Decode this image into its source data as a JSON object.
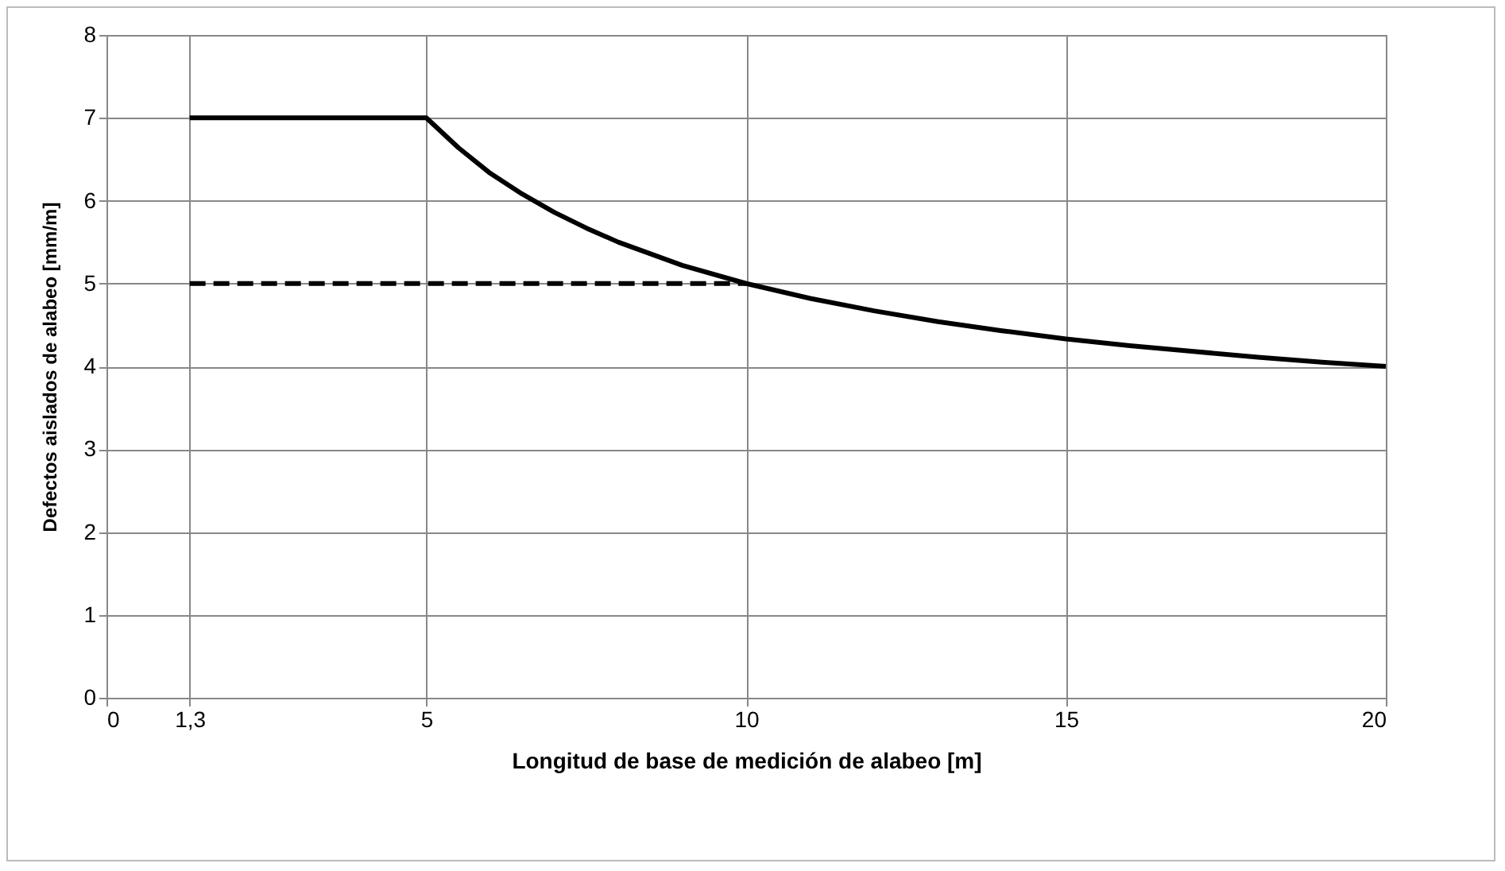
{
  "chart_data": {
    "type": "line",
    "xlabel": "Longitud de base de medición de alabeo [m]",
    "ylabel": "Defectos  aislados  de  alabeo [mm/m]",
    "xlim": [
      0,
      20
    ],
    "xticks": [
      0,
      {
        "value": 1.3,
        "label": "1,3"
      },
      5,
      10,
      15,
      20
    ],
    "ylim": [
      0,
      8
    ],
    "yticks": [
      0,
      1,
      2,
      3,
      4,
      5,
      6,
      7,
      8
    ],
    "grid": true,
    "series": [
      {
        "color": "#000000",
        "line_style": "solid",
        "x": [
          1.3,
          5,
          5.5,
          6,
          6.5,
          7,
          7.5,
          8,
          9,
          10,
          11,
          12,
          13,
          14,
          15,
          16,
          17,
          18,
          19,
          20
        ],
        "values": [
          7,
          7,
          6.64,
          6.33,
          6.08,
          5.86,
          5.67,
          5.5,
          5.22,
          5,
          4.82,
          4.67,
          4.54,
          4.43,
          4.33,
          4.25,
          4.18,
          4.11,
          4.05,
          4
        ]
      },
      {
        "color": "#000000",
        "line_style": "dashed",
        "x": [
          1.3,
          10
        ],
        "values": [
          5,
          5
        ]
      }
    ]
  }
}
